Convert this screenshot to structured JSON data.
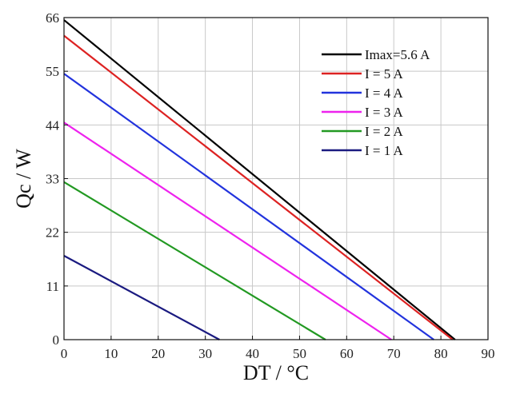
{
  "chart_data": {
    "type": "line",
    "title": "",
    "xlabel": "DT / °C",
    "ylabel": "Qc / W",
    "xlim": [
      0,
      90
    ],
    "ylim": [
      0,
      66
    ],
    "xticks": [
      0,
      10,
      20,
      30,
      40,
      50,
      60,
      70,
      80,
      90
    ],
    "yticks": [
      0,
      11,
      22,
      33,
      44,
      55,
      66
    ],
    "grid": true,
    "legend_position": "top-right",
    "series": [
      {
        "name": "Imax=5.6 A",
        "color": "#000000",
        "x": [
          0,
          83
        ],
        "y": [
          65.5,
          0
        ]
      },
      {
        "name": "I = 5 A",
        "color": "#dd2222",
        "x": [
          0,
          82.5
        ],
        "y": [
          62.3,
          0
        ]
      },
      {
        "name": "I = 4 A",
        "color": "#2233dd",
        "x": [
          0,
          78.5
        ],
        "y": [
          54.5,
          0
        ]
      },
      {
        "name": "I = 3 A",
        "color": "#ee22ee",
        "x": [
          0,
          69.5
        ],
        "y": [
          44.5,
          0
        ]
      },
      {
        "name": "I = 2 A",
        "color": "#229922",
        "x": [
          0,
          55.5
        ],
        "y": [
          32.3,
          0
        ]
      },
      {
        "name": "I = 1 A",
        "color": "#1a1a80",
        "x": [
          0,
          33
        ],
        "y": [
          17.2,
          0
        ]
      }
    ]
  }
}
